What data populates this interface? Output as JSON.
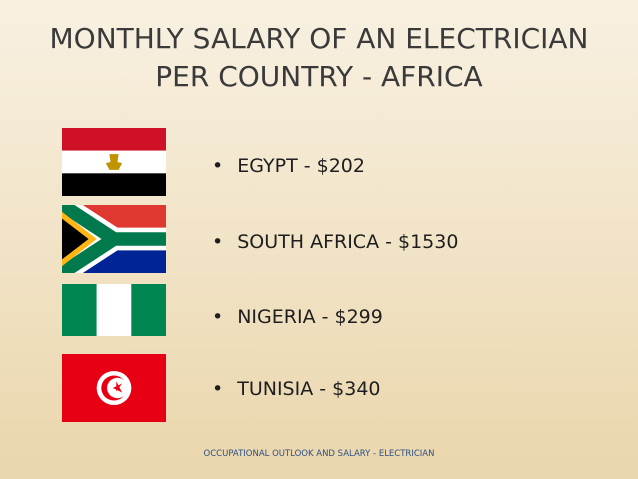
{
  "title": "MONTHLY SALARY OF AN ELECTRICIAN PER COUNTRY - AFRICA",
  "items": [
    "EGYPT - $202",
    "SOUTH AFRICA - $1530",
    "NIGERIA - $299",
    "TUNISIA - $340"
  ],
  "footer": "OCCUPATIONAL OUTLOOK AND SALARY - ELECTRICIAN"
}
